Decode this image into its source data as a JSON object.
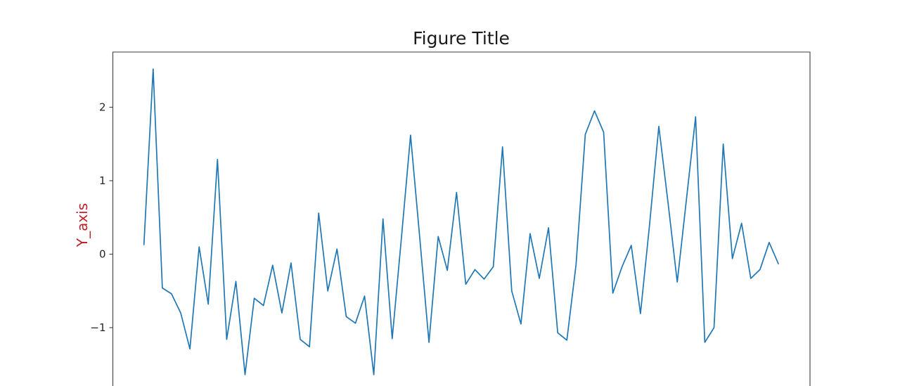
{
  "figure": {
    "background": "#ffffff"
  },
  "chart_data": {
    "type": "line",
    "title": "Figure Title",
    "xlabel": "",
    "ylabel": "Y_axis",
    "legend": null,
    "grid": false,
    "line_color": "#1f77b4",
    "ylabel_color": "#bf2229",
    "yticks": [
      2,
      1,
      0,
      -1
    ],
    "ytick_labels": [
      "2",
      "1",
      "0",
      "−1"
    ],
    "ylim_visible": [
      -1.8,
      2.75
    ],
    "x_start": 0,
    "x_step": 1,
    "x": [
      0,
      1,
      2,
      3,
      4,
      5,
      6,
      7,
      8,
      9,
      10,
      11,
      12,
      13,
      14,
      15,
      16,
      17,
      18,
      19,
      20,
      21,
      22,
      23,
      24,
      25,
      26,
      27,
      28,
      29,
      30,
      31,
      32,
      33,
      34,
      35,
      36,
      37,
      38,
      39,
      40,
      41,
      42,
      43,
      44,
      45,
      46,
      47,
      48,
      49,
      50,
      51,
      52,
      53,
      54,
      55,
      56,
      57,
      58,
      59,
      60,
      61,
      62,
      63,
      64,
      65,
      66,
      67,
      68,
      69
    ],
    "values": [
      0.13,
      2.52,
      -0.46,
      -0.54,
      -0.8,
      -1.29,
      0.1,
      -0.68,
      1.29,
      -1.16,
      -0.37,
      -1.64,
      -0.6,
      -0.7,
      -0.15,
      -0.8,
      -0.12,
      -1.16,
      -1.26,
      0.56,
      -0.5,
      0.07,
      -0.85,
      -0.94,
      -0.57,
      -1.64,
      0.48,
      -1.15,
      0.22,
      1.62,
      0.22,
      -1.2,
      0.24,
      -0.22,
      0.84,
      -0.41,
      -0.21,
      -0.34,
      -0.17,
      1.46,
      -0.5,
      -0.95,
      0.28,
      -0.33,
      0.36,
      -1.07,
      -1.17,
      -0.14,
      1.63,
      1.95,
      1.66,
      -0.53,
      -0.17,
      0.12,
      -0.81,
      0.41,
      1.74,
      0.7,
      -0.38,
      0.74,
      1.87,
      -1.2,
      -1.0,
      1.5,
      -0.06,
      0.42,
      -0.33,
      -0.21,
      0.16,
      -0.13
    ]
  }
}
